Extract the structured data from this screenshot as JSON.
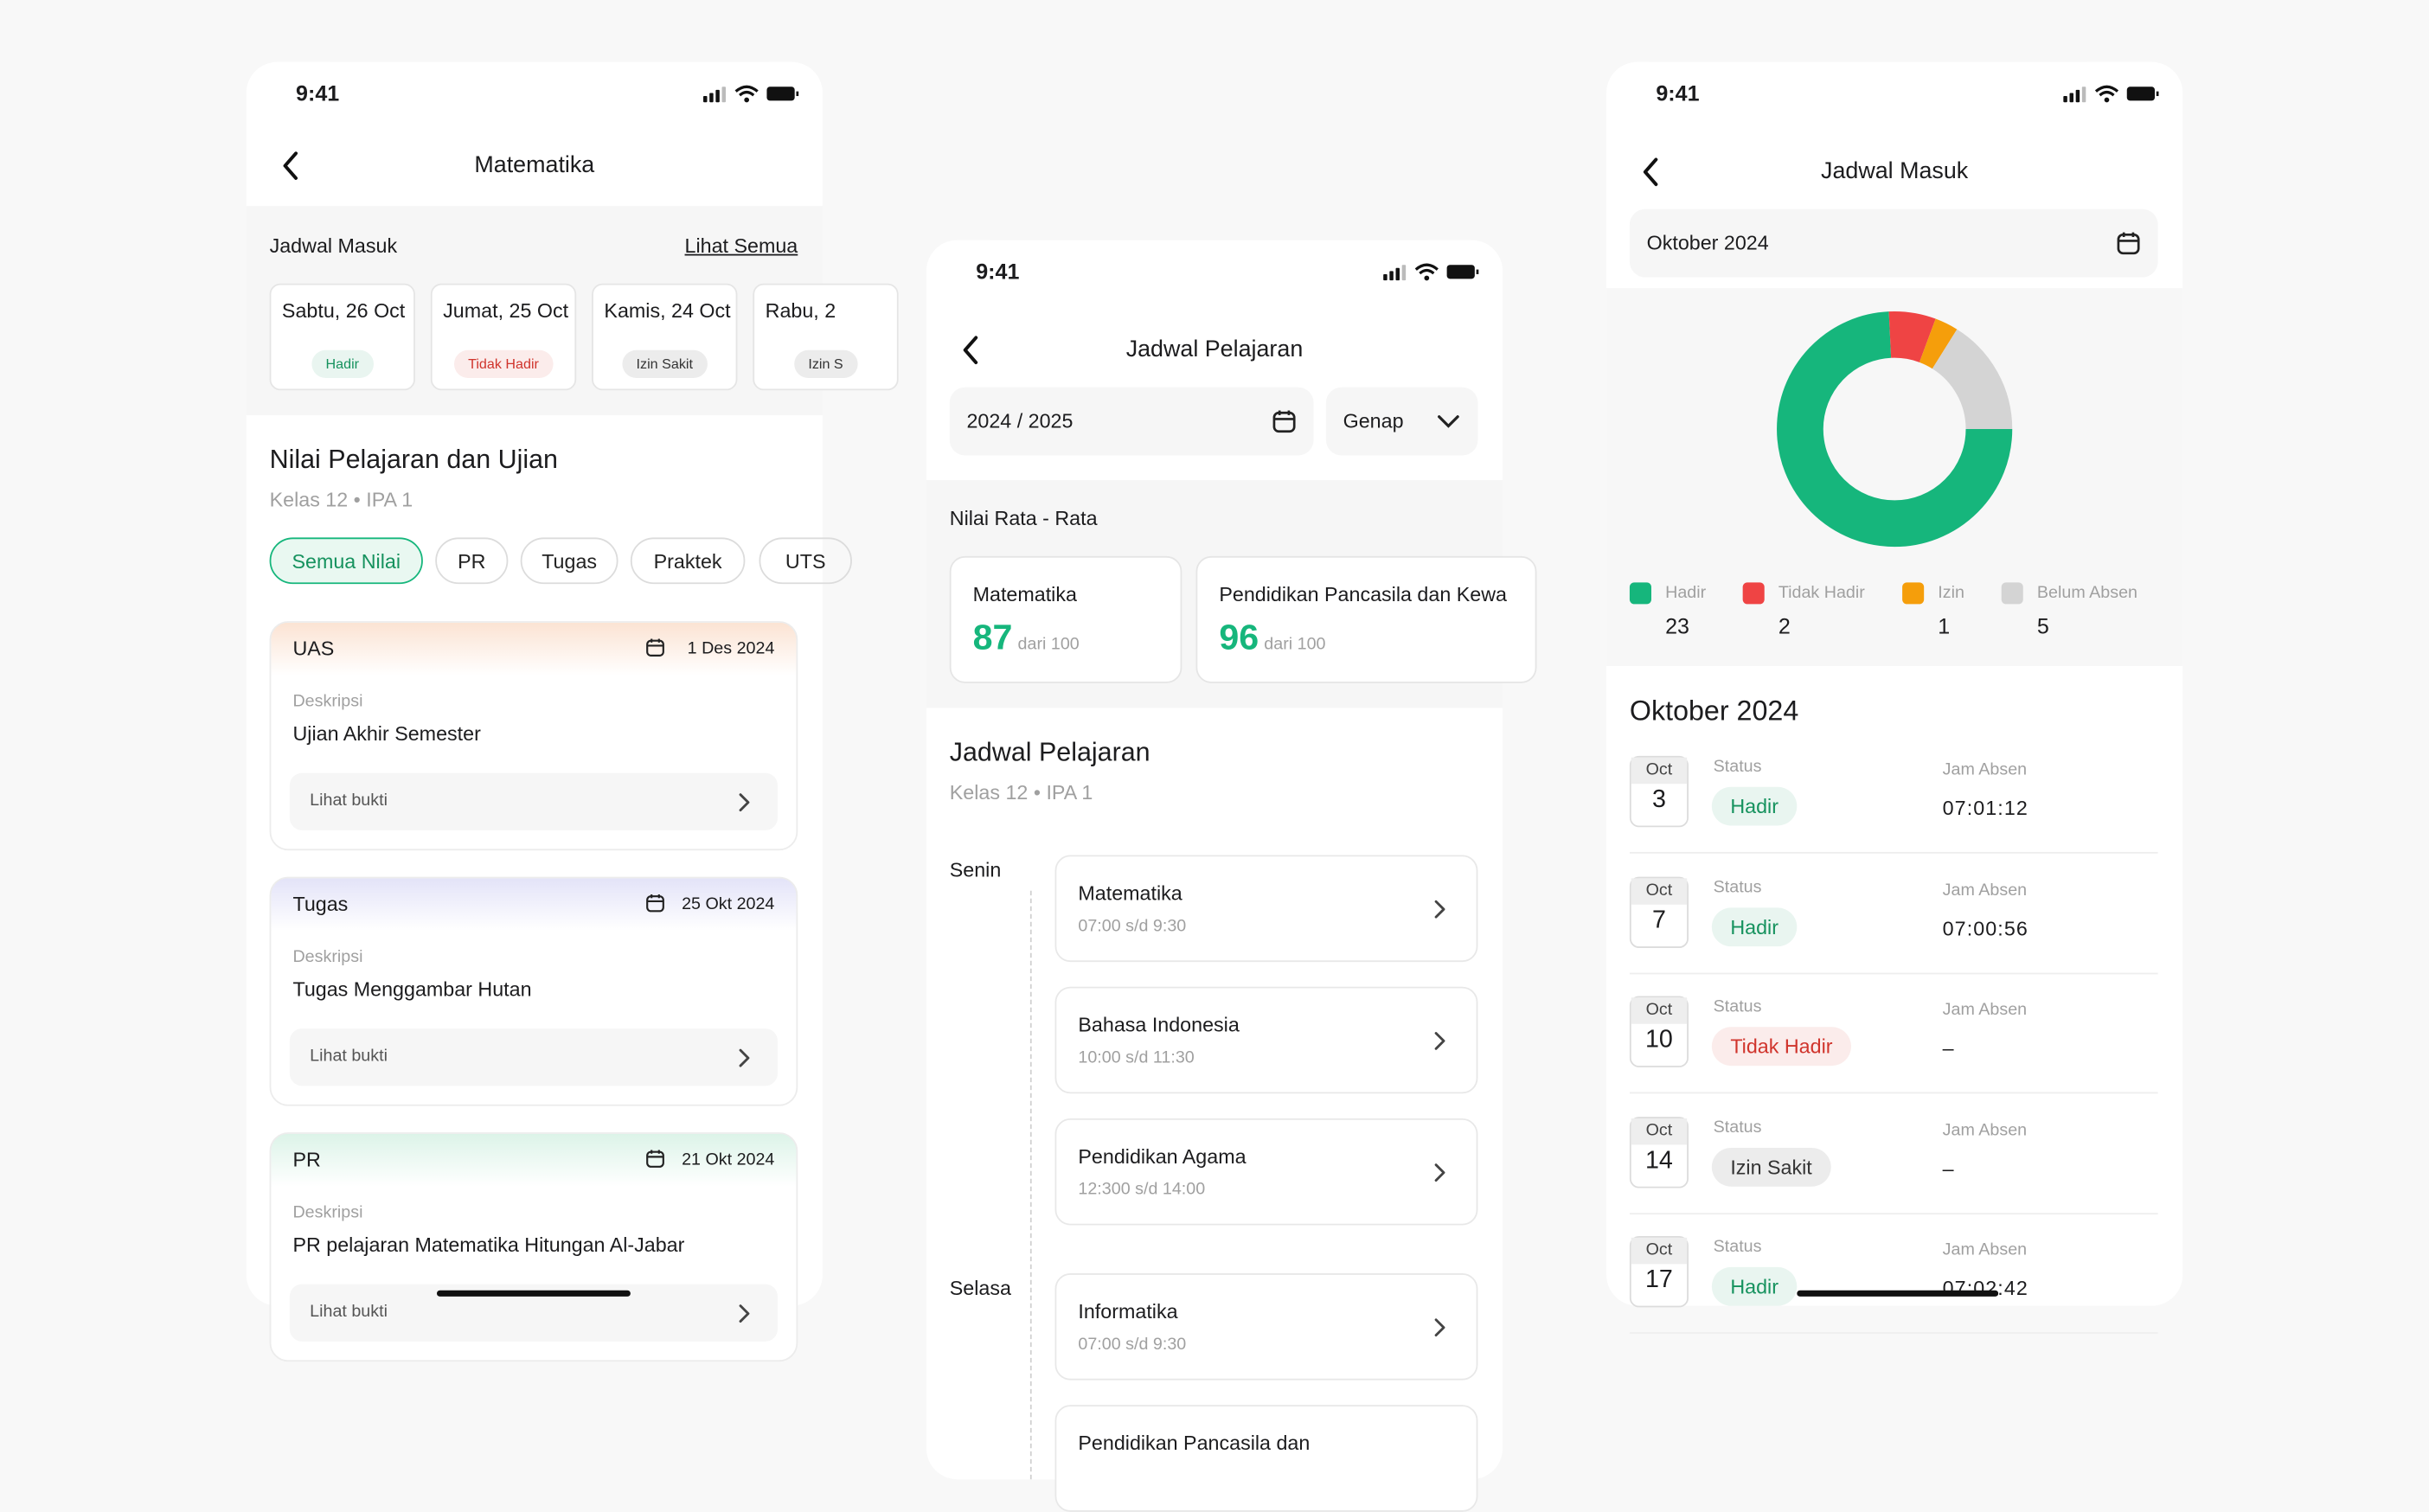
{
  "status_bar": {
    "time": "9:41"
  },
  "screen1": {
    "title": "Matematika",
    "schedule_label": "Jadwal Masuk",
    "schedule_link": "Lihat Semua",
    "days": [
      {
        "date": "Sabtu, 26 Oct",
        "status": "Hadir",
        "color": "#16925e"
      },
      {
        "date": "Jumat, 25 Oct",
        "status": "Tidak Hadir",
        "color": "#d0342c"
      },
      {
        "date": "Kamis, 24 Oct",
        "status": "Izin Sakit",
        "color": "#333333"
      },
      {
        "date": "Rabu, 2",
        "status": "Izin S",
        "color": "#333333"
      }
    ],
    "section_title": "Nilai Pelajaran dan Ujian",
    "section_subtitle": "Kelas 12 • IPA 1",
    "filters": [
      "Semua Nilai",
      "PR",
      "Tugas",
      "Praktek",
      "UTS"
    ],
    "cards": [
      {
        "type": "UAS",
        "date": "1 Des 2024",
        "desc_label": "Deskripsi",
        "desc": "Ujian Akhir Semester",
        "action": "Lihat bukti",
        "color": "#fbe3d3"
      },
      {
        "type": "Tugas",
        "date": "25 Okt 2024",
        "desc_label": "Deskripsi",
        "desc": "Tugas Menggambar Hutan",
        "action": "Lihat bukti",
        "color": "#e3e3f8"
      },
      {
        "type": "PR",
        "date": "21 Okt 2024",
        "desc_label": "Deskripsi",
        "desc": "PR pelajaran Matematika Hitungan Al-Jabar",
        "action": "Lihat bukti",
        "color": "#dcf3e8"
      }
    ]
  },
  "screen2": {
    "title": "Jadwal Pelajaran",
    "year": "2024 / 2025",
    "semester": "Genap",
    "average_label": "Nilai Rata - Rata",
    "grades": [
      {
        "subject": "Matematika",
        "score": 87,
        "of": "dari 100"
      },
      {
        "subject": "Pendidikan Pancasila dan Kewa",
        "score": 96,
        "of": "dari 100"
      }
    ],
    "schedule_title": "Jadwal Pelajaran",
    "schedule_subtitle": "Kelas 12 • IPA 1",
    "days": [
      {
        "day": "Senin",
        "lessons": [
          {
            "name": "Matematika",
            "time": "07:00 s/d 9:30"
          },
          {
            "name": "Bahasa Indonesia",
            "time": "10:00 s/d 11:30"
          },
          {
            "name": "Pendidikan Agama",
            "time": "12:300 s/d 14:00"
          }
        ]
      },
      {
        "day": "Selasa",
        "lessons": [
          {
            "name": "Informatika",
            "time": "07:00 s/d 9:30"
          },
          {
            "name": "Pendidikan Pancasila dan"
          }
        ]
      }
    ]
  },
  "screen3": {
    "title": "Jadwal Masuk",
    "month": "Oktober 2024",
    "legend": [
      {
        "label": "Hadir",
        "count": 23,
        "color": "#16b67c"
      },
      {
        "label": "Tidak Hadir",
        "count": 2,
        "color": "#ef4444"
      },
      {
        "label": "Izin",
        "count": 1,
        "color": "#f59e0b"
      },
      {
        "label": "Belum Absen",
        "count": 5,
        "color": "#d4d4d4"
      }
    ],
    "list_title": "Oktober 2024",
    "records": [
      {
        "month": "Oct",
        "day": 3,
        "status_label": "Status",
        "status": "Hadir",
        "color": "#16925e",
        "time_label": "Jam Absen",
        "time": "07:01:12"
      },
      {
        "month": "Oct",
        "day": 7,
        "status_label": "Status",
        "status": "Hadir",
        "color": "#16925e",
        "time_label": "Jam Absen",
        "time": "07:00:56"
      },
      {
        "month": "Oct",
        "day": 10,
        "status_label": "Status",
        "status": "Tidak Hadir",
        "color": "#d0342c",
        "time_label": "Jam Absen",
        "time": "–"
      },
      {
        "month": "Oct",
        "day": 14,
        "status_label": "Status",
        "status": "Izin Sakit",
        "color": "#333333",
        "time_label": "Jam Absen",
        "time": "–"
      },
      {
        "month": "Oct",
        "day": 17,
        "status_label": "Status",
        "status": "Hadir",
        "color": "#16925e",
        "time_label": "Jam Absen",
        "time": "07:02:42"
      }
    ]
  }
}
